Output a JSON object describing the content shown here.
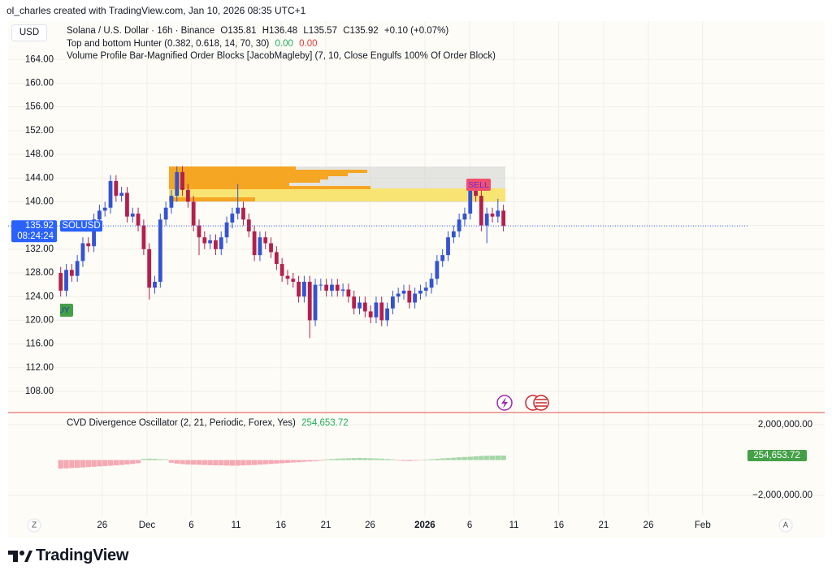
{
  "header": {
    "credit": "ol_charles created with TradingView.com, Jan 10, 2026 08:35 UTC+1",
    "currency": "USD",
    "logo": "TradingView",
    "legend": {
      "symbol": "Solana / U.S. Dollar · 16h · Binance",
      "open": "O135.81",
      "high": "H136.48",
      "low": "L135.57",
      "close": "C135.92",
      "change": "+0.10 (+0.07%)"
    },
    "indicators": [
      {
        "name": "Top and bottom Hunter (0.382, 0.618, 14, 70, 30)",
        "values": [
          "0.00",
          "0.00"
        ]
      },
      {
        "name": "Volume Profile Bar-Magnified Order Blocks [JacobMagleby] (7, 10, Close Engulfs 100% Of Order Block)"
      }
    ],
    "ticker": "SOLUSD",
    "countdown": "08:24:24",
    "signals": [
      "SELL",
      "BUY"
    ],
    "buttons": [
      "Z",
      "A"
    ]
  },
  "chart_data": [
    {
      "type": "candlestick",
      "up_color": "#3453d1",
      "down_color": "#b3204d",
      "grid": true,
      "open": [
        128,
        125,
        128.5,
        127.5,
        130,
        133,
        132.5,
        137,
        138.5,
        139,
        143.5,
        141,
        141.5,
        137.5,
        138,
        136,
        132,
        125.5,
        126.5,
        137,
        139,
        141,
        145,
        142,
        140,
        136,
        134,
        133,
        133.5,
        132,
        134,
        136.5,
        138,
        139,
        137,
        135,
        131,
        134,
        133,
        131.5,
        129.5,
        127.5,
        127,
        126.5,
        124,
        126.5,
        120,
        126,
        126,
        125,
        126,
        125,
        125.2,
        124,
        122,
        123,
        121.5,
        120.5,
        123,
        120,
        122,
        124,
        124.5,
        125,
        123,
        124.5,
        125,
        125.5,
        127,
        130,
        131,
        134,
        135,
        137,
        138,
        142,
        141,
        136,
        138,
        137.5,
        138.5
      ],
      "high": [
        129,
        129.5,
        129.5,
        131,
        134,
        134,
        138,
        139.5,
        140,
        144.5,
        144.5,
        142.5,
        142.5,
        139,
        139,
        137,
        133,
        127.5,
        138,
        140,
        142,
        146,
        146,
        143,
        141,
        137,
        135,
        134.5,
        134.5,
        135,
        137.5,
        139,
        143,
        140,
        138,
        136,
        135,
        135,
        134,
        132.5,
        130.5,
        128.5,
        128,
        127.5,
        127.5,
        127.5,
        127,
        127,
        127,
        127,
        127,
        126.2,
        126.2,
        125,
        124,
        124,
        122.5,
        124,
        124,
        123,
        125,
        125.5,
        126,
        126,
        125.5,
        126,
        126.5,
        128,
        131,
        132,
        135,
        136,
        138,
        139,
        143,
        143,
        142,
        139,
        139,
        140.5,
        139.5
      ],
      "low": [
        124,
        124,
        126.5,
        126.5,
        129,
        131.5,
        131.5,
        136,
        137.5,
        138,
        140,
        140,
        136.5,
        136.5,
        135,
        131,
        123.5,
        124.5,
        125.5,
        136,
        138,
        140,
        141,
        139,
        135,
        131,
        132,
        132,
        131,
        131,
        133,
        135.5,
        137,
        136,
        134,
        130,
        130,
        132,
        130.5,
        128.5,
        126.5,
        126,
        125.5,
        123,
        123,
        117,
        119,
        125,
        124,
        124,
        124,
        124,
        123,
        121,
        121,
        120.5,
        119.5,
        119.5,
        119,
        119,
        121,
        123,
        123.5,
        122,
        122,
        123.5,
        124,
        124.5,
        126,
        129,
        130,
        133,
        134,
        136,
        137,
        140,
        135,
        133,
        136.5,
        136.5,
        135
      ],
      "close": [
        125,
        128.5,
        127.5,
        130,
        133,
        132.5,
        137,
        138.5,
        139,
        143.5,
        141,
        141.5,
        137.5,
        138,
        136,
        132,
        125.5,
        126.5,
        137,
        139,
        141,
        145,
        142,
        140,
        136,
        134,
        133,
        133.5,
        132,
        134,
        136.5,
        138,
        139,
        137,
        135,
        131,
        134,
        133,
        131.5,
        129.5,
        127.5,
        127,
        126.5,
        124,
        126.5,
        120,
        126,
        126,
        125,
        126,
        125,
        125.2,
        124,
        122,
        123,
        121.5,
        120.5,
        123,
        120,
        122,
        124,
        124.5,
        125,
        123,
        124.5,
        125,
        125.5,
        127,
        130,
        131,
        134,
        135,
        137,
        138,
        142,
        141,
        136,
        138,
        137.5,
        138.5,
        135.92
      ],
      "last_price": 135.92,
      "xlim": [
        -9.5,
        124.1
      ],
      "xticks": [
        {
          "value": 7.5,
          "label": "26"
        },
        {
          "value": 15.6,
          "label": "Dec"
        },
        {
          "value": 23.6,
          "label": "6"
        },
        {
          "value": 31.7,
          "label": "11"
        },
        {
          "value": 39.8,
          "label": "16"
        },
        {
          "value": 47.9,
          "label": "21"
        },
        {
          "value": 55.9,
          "label": "26"
        },
        {
          "value": 65.8,
          "label": "2026"
        },
        {
          "value": 73.9,
          "label": "6"
        },
        {
          "value": 81.9,
          "label": "11"
        },
        {
          "value": 90.0,
          "label": "16"
        },
        {
          "value": 98.1,
          "label": "21"
        },
        {
          "value": 106.2,
          "label": "26"
        },
        {
          "value": 116.0,
          "label": "Feb"
        }
      ],
      "ylim": [
        104.85,
        170.2
      ],
      "yticks": [
        {
          "value": 108,
          "label": "108.00"
        },
        {
          "value": 112,
          "label": "112.00"
        },
        {
          "value": 116,
          "label": "116.00"
        },
        {
          "value": 120,
          "label": "120.00"
        },
        {
          "value": 124,
          "label": "124.00"
        },
        {
          "value": 128,
          "label": "128.00"
        },
        {
          "value": 132,
          "label": "132.00"
        },
        {
          "value": 136,
          "label": "136.00"
        },
        {
          "value": 140,
          "label": "140.00"
        },
        {
          "value": 144,
          "label": "144.00"
        },
        {
          "value": 148,
          "label": "148.00"
        },
        {
          "value": 152,
          "label": "152.00"
        },
        {
          "value": 156,
          "label": "156.00"
        },
        {
          "value": 160,
          "label": "160.00"
        },
        {
          "value": 164,
          "label": "164.00"
        }
      ]
    },
    {
      "type": "bar",
      "title": "CVD Divergence Oscillator (2, 21, Periodic, Forex, Yes)",
      "pos_color": "#a5d6a7",
      "neg_color": "#f5a9b4",
      "values": [
        -480000,
        -470000,
        -450000,
        -440000,
        -420000,
        -400000,
        -380000,
        -360000,
        -340000,
        -320000,
        -300000,
        -280000,
        -250000,
        -220000,
        -180000,
        60000,
        80000,
        70000,
        50000,
        40000,
        -150000,
        -200000,
        -230000,
        -250000,
        -260000,
        -270000,
        -280000,
        -290000,
        -300000,
        -300000,
        -310000,
        -320000,
        -320000,
        -300000,
        -290000,
        -280000,
        -260000,
        -240000,
        -220000,
        -200000,
        -180000,
        -160000,
        -140000,
        -120000,
        -100000,
        -80000,
        -60000,
        -40000,
        40000,
        60000,
        80000,
        90000,
        100000,
        110000,
        120000,
        110000,
        100000,
        90000,
        80000,
        60000,
        40000,
        -30000,
        -50000,
        -60000,
        -40000,
        -20000,
        30000,
        50000,
        70000,
        90000,
        110000,
        130000,
        150000,
        170000,
        190000,
        210000,
        230000,
        240000,
        245000,
        250000,
        254653.72
      ],
      "last_value_label": "254,653.72",
      "xlim": [
        -9.5,
        124.1
      ],
      "ylim": [
        -3150000,
        2600000
      ],
      "yticks": [
        {
          "value": 2000000,
          "label": "2,000,000.00"
        },
        {
          "value": -2000000,
          "label": "−2,000,000.00"
        }
      ]
    }
  ]
}
